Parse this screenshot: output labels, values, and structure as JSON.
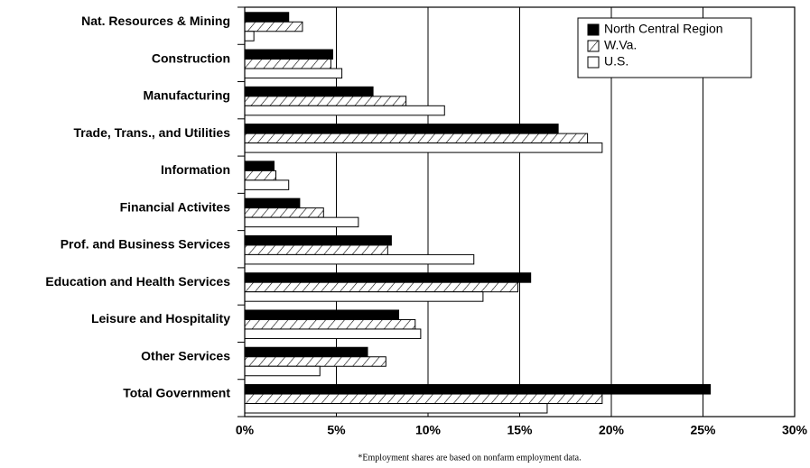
{
  "chart_data": {
    "type": "hbar",
    "categories": [
      "Nat. Resources & Mining",
      "Construction",
      "Manufacturing",
      "Trade, Trans., and Utilities",
      "Information",
      "Financial Activites",
      "Prof. and Business Services",
      "Education and Health Services",
      "Leisure and Hospitality",
      "Other Services",
      "Total Government"
    ],
    "series": [
      {
        "name": "North Central Region",
        "color": "#000000",
        "values": [
          2.4,
          4.8,
          7.0,
          17.1,
          1.6,
          3.0,
          8.0,
          15.6,
          8.4,
          6.7,
          25.4
        ]
      },
      {
        "name": "W.Va.",
        "color": "#ffffff",
        "pattern": "hatch",
        "values": [
          3.15,
          4.7,
          8.8,
          18.7,
          1.7,
          4.3,
          7.8,
          14.9,
          9.3,
          7.7,
          19.5
        ]
      },
      {
        "name": "U.S.",
        "color": "#ffffff",
        "values": [
          0.5,
          5.3,
          10.9,
          19.5,
          2.4,
          6.2,
          12.5,
          13.0,
          9.6,
          4.1,
          16.5
        ]
      }
    ],
    "xlim": [
      0,
      30
    ],
    "xticks": [
      {
        "value": 0,
        "label": "0%"
      },
      {
        "value": 5,
        "label": "5%"
      },
      {
        "value": 10,
        "label": "10%"
      },
      {
        "value": 15,
        "label": "15%"
      },
      {
        "value": 20,
        "label": "20%"
      },
      {
        "value": 25,
        "label": "25%"
      },
      {
        "value": 30,
        "label": "30%"
      }
    ],
    "grid": true,
    "legend": "top-right",
    "footnote": "*Employment shares are based on nonfarm employment data."
  }
}
